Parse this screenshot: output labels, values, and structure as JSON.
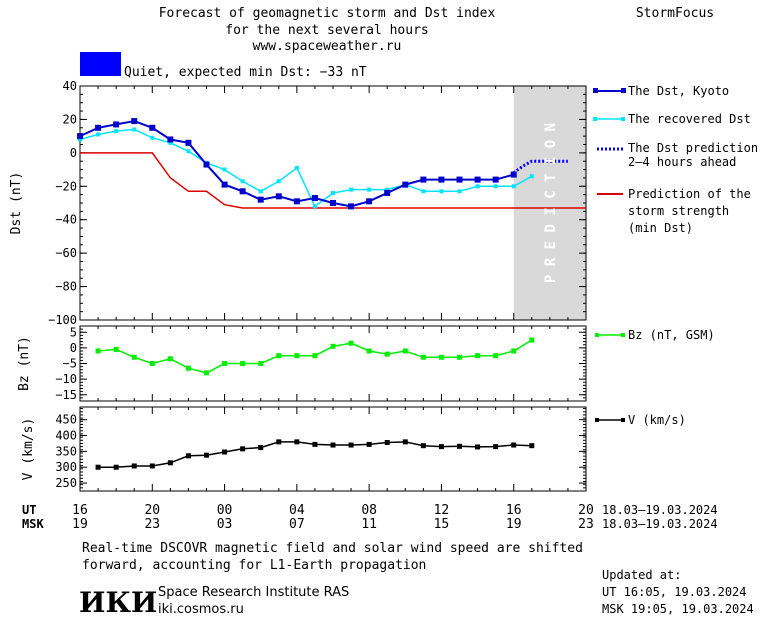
{
  "header": {
    "title_line1": "Forecast of geomagnetic storm and Dst index",
    "title_line2": "for the next several hours",
    "url": "www.spaceweather.ru",
    "brand": "StormFocus",
    "status_text": "Quiet, expected min Dst: −33 nT",
    "status_color": "#0000ff"
  },
  "legend": {
    "dst_kyoto": "The Dst, Kyoto",
    "recovered": "The recovered Dst",
    "prediction_line1": "The Dst prediction",
    "prediction_line2": "2–4 hours ahead",
    "strength_line1": "Prediction of the",
    "strength_line2": "storm strength",
    "strength_line3": "(min Dst)",
    "bz": "Bz (nT, GSM)",
    "v": "V (km/s)"
  },
  "prediction_label": "P R E D I C T I O N",
  "time_axis": {
    "ut_label": "UT",
    "msk_label": "MSK",
    "ut_ticks": [
      "16",
      "20",
      "00",
      "04",
      "08",
      "12",
      "16",
      "20"
    ],
    "msk_ticks": [
      "19",
      "23",
      "03",
      "07",
      "11",
      "15",
      "19",
      "23"
    ],
    "ut_range": "18.03–19.03.2024",
    "msk_range": "18.03–19.03.2024"
  },
  "footer": {
    "note_line1": "Real-time DSCOVR magnetic field and solar wind speed are shifted",
    "note_line2": "forward, accounting for L1-Earth propagation",
    "logo": "ИКИ",
    "institute": "Space Research Institute RAS",
    "site": "iki.cosmos.ru",
    "updated_label": "Updated at:",
    "updated_ut": "UT  16:05, 19.03.2024",
    "updated_msk": "MSK 19:05, 19.03.2024"
  },
  "colors": {
    "dst_kyoto": "#0000cc",
    "recovered": "#00e5ff",
    "prediction": "#0000ff",
    "strength": "#dd0000",
    "bz": "#00ee00",
    "v": "#000000",
    "prediction_band": "#d9d9d9"
  },
  "chart_data": [
    {
      "type": "line",
      "ylabel": "Dst (nT)",
      "ylim": [
        -100,
        40
      ],
      "yticks": [
        40,
        20,
        0,
        -20,
        -40,
        -60,
        -80,
        -100
      ],
      "xlim_hours": [
        16,
        44
      ],
      "prediction_start_hour": 40,
      "series": [
        {
          "name": "The Dst, Kyoto",
          "x": [
            16,
            17,
            18,
            19,
            20,
            21,
            22,
            23,
            24,
            25,
            26,
            27,
            28,
            29,
            30,
            31,
            32,
            33,
            34,
            35,
            36,
            37,
            38,
            39,
            40
          ],
          "y": [
            10,
            15,
            17,
            19,
            15,
            8,
            6,
            -7,
            -19,
            -23,
            -28,
            -26,
            -29,
            -27,
            -30,
            -32,
            -29,
            -24,
            -19,
            -16,
            -16,
            -16,
            -16,
            -16,
            -13
          ]
        },
        {
          "name": "The recovered Dst",
          "x": [
            16,
            17,
            18,
            19,
            20,
            21,
            22,
            23,
            24,
            25,
            26,
            27,
            28,
            29,
            30,
            31,
            32,
            33,
            34,
            35,
            36,
            37,
            38,
            39,
            40,
            41
          ],
          "y": [
            8,
            11,
            13,
            14,
            9,
            6,
            1,
            -6,
            -10,
            -17,
            -23,
            -17,
            -9,
            -32,
            -24,
            -22,
            -22,
            -22,
            -19,
            -23,
            -23,
            -23,
            -20,
            -20,
            -20,
            -14
          ]
        },
        {
          "name": "The Dst prediction 2–4 hours ahead",
          "x": [
            40,
            40.5,
            41,
            42,
            43
          ],
          "y": [
            -12,
            -8,
            -5,
            -5,
            -5
          ]
        },
        {
          "name": "Prediction of the storm strength (min Dst)",
          "x": [
            16,
            20,
            21,
            22,
            23,
            24,
            25,
            44
          ],
          "y": [
            0,
            0,
            -15,
            -23,
            -23,
            -31,
            -33,
            -33
          ]
        }
      ]
    },
    {
      "type": "line",
      "ylabel": "Bz (nT)",
      "ylim": [
        -17,
        7
      ],
      "yticks": [
        5,
        0,
        -5,
        -10,
        -15
      ],
      "series": [
        {
          "name": "Bz (nT, GSM)",
          "x": [
            17,
            18,
            19,
            20,
            21,
            22,
            23,
            24,
            25,
            26,
            27,
            28,
            29,
            30,
            31,
            32,
            33,
            34,
            35,
            36,
            37,
            38,
            39,
            40,
            41
          ],
          "y": [
            -1,
            -0.5,
            -3,
            -5,
            -3.5,
            -6.5,
            -8,
            -5,
            -5,
            -5,
            -2.5,
            -2.5,
            -2.5,
            0.5,
            1.5,
            -1,
            -2,
            -1,
            -3,
            -3,
            -3,
            -2.5,
            -2.5,
            -1,
            2.5
          ]
        }
      ]
    },
    {
      "type": "line",
      "ylabel": "V (km/s)",
      "ylim": [
        225,
        490
      ],
      "yticks": [
        450,
        400,
        350,
        300,
        250
      ],
      "series": [
        {
          "name": "V (km/s)",
          "x": [
            17,
            18,
            19,
            20,
            21,
            22,
            23,
            24,
            25,
            26,
            27,
            28,
            29,
            30,
            31,
            32,
            33,
            34,
            35,
            36,
            37,
            38,
            39,
            40,
            41
          ],
          "y": [
            300,
            300,
            304,
            304,
            314,
            336,
            338,
            348,
            358,
            362,
            380,
            380,
            372,
            370,
            370,
            372,
            378,
            380,
            368,
            365,
            366,
            364,
            365,
            370,
            368
          ]
        }
      ]
    }
  ]
}
